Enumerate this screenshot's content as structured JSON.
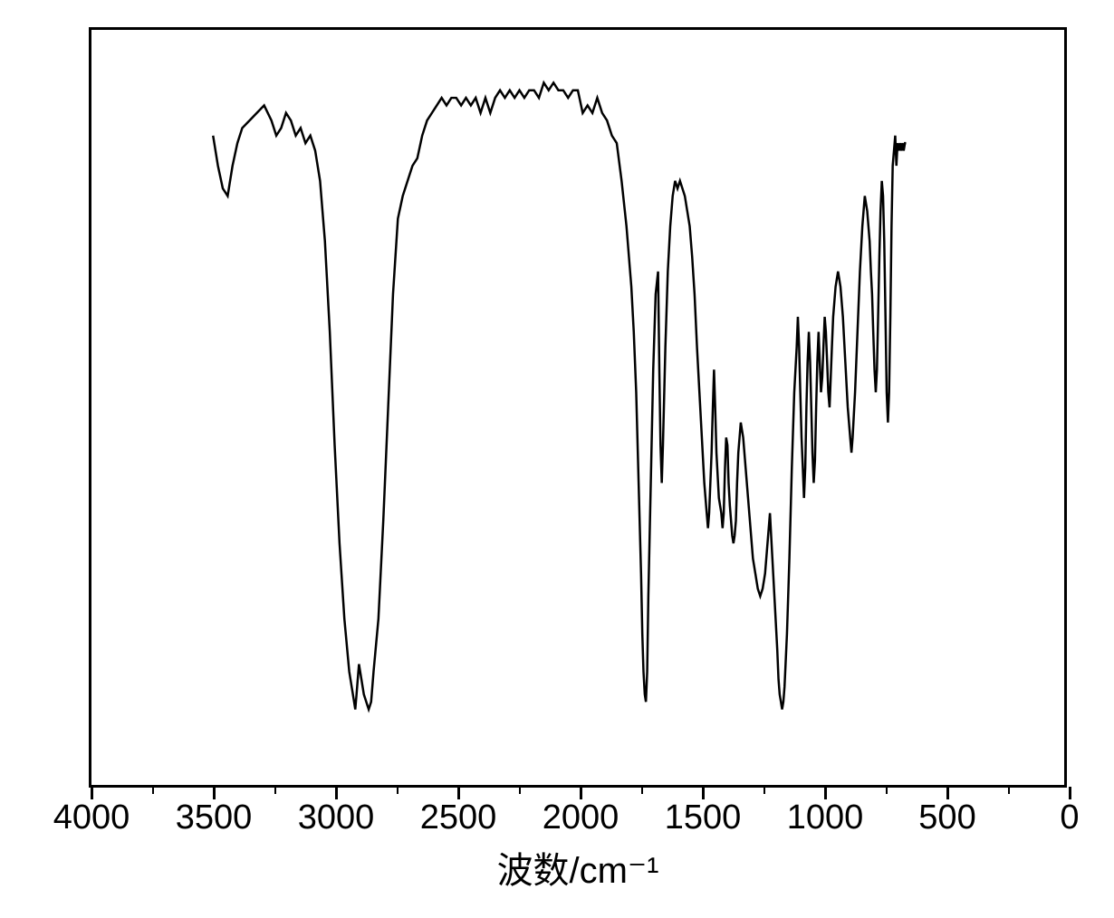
{
  "chart": {
    "type": "line",
    "title": "",
    "xlabel": "波数/cm⁻¹",
    "xlabel_fontsize": 40,
    "ylabel": "",
    "x_axis_reversed": true,
    "xlim": [
      0,
      4000
    ],
    "xtick_major": [
      4000,
      3500,
      3000,
      2500,
      2000,
      1500,
      1000,
      500,
      0
    ],
    "xtick_minor": [
      3750,
      3250,
      2750,
      2250,
      1750,
      1250,
      750,
      250
    ],
    "tick_label_fontsize": 38,
    "background_color": "#ffffff",
    "line_color": "#000000",
    "line_width": 2.5,
    "border_width": 3,
    "border_color": "#000000",
    "data_x_range": [
      3500,
      650
    ],
    "spectrum_points": [
      [
        3500,
        86
      ],
      [
        3480,
        82
      ],
      [
        3460,
        79
      ],
      [
        3440,
        78
      ],
      [
        3420,
        82
      ],
      [
        3400,
        85
      ],
      [
        3380,
        87
      ],
      [
        3350,
        88
      ],
      [
        3320,
        89
      ],
      [
        3290,
        90
      ],
      [
        3260,
        88
      ],
      [
        3240,
        86
      ],
      [
        3220,
        87
      ],
      [
        3200,
        89
      ],
      [
        3180,
        88
      ],
      [
        3160,
        86
      ],
      [
        3140,
        87
      ],
      [
        3120,
        85
      ],
      [
        3100,
        86
      ],
      [
        3080,
        84
      ],
      [
        3060,
        80
      ],
      [
        3040,
        72
      ],
      [
        3020,
        60
      ],
      [
        3000,
        45
      ],
      [
        2980,
        32
      ],
      [
        2960,
        22
      ],
      [
        2940,
        15
      ],
      [
        2920,
        11
      ],
      [
        2915,
        10
      ],
      [
        2910,
        12
      ],
      [
        2900,
        16
      ],
      [
        2890,
        14
      ],
      [
        2880,
        12
      ],
      [
        2870,
        11
      ],
      [
        2860,
        10
      ],
      [
        2850,
        11
      ],
      [
        2840,
        15
      ],
      [
        2820,
        22
      ],
      [
        2800,
        35
      ],
      [
        2780,
        50
      ],
      [
        2760,
        65
      ],
      [
        2740,
        75
      ],
      [
        2720,
        78
      ],
      [
        2700,
        80
      ],
      [
        2680,
        82
      ],
      [
        2660,
        83
      ],
      [
        2640,
        86
      ],
      [
        2620,
        88
      ],
      [
        2600,
        89
      ],
      [
        2580,
        90
      ],
      [
        2560,
        91
      ],
      [
        2540,
        90
      ],
      [
        2520,
        91
      ],
      [
        2500,
        91
      ],
      [
        2480,
        90
      ],
      [
        2460,
        91
      ],
      [
        2440,
        90
      ],
      [
        2420,
        91
      ],
      [
        2400,
        89
      ],
      [
        2380,
        91
      ],
      [
        2360,
        89
      ],
      [
        2340,
        91
      ],
      [
        2320,
        92
      ],
      [
        2300,
        91
      ],
      [
        2280,
        92
      ],
      [
        2260,
        91
      ],
      [
        2240,
        92
      ],
      [
        2220,
        91
      ],
      [
        2200,
        92
      ],
      [
        2180,
        92
      ],
      [
        2160,
        91
      ],
      [
        2140,
        93
      ],
      [
        2120,
        92
      ],
      [
        2100,
        93
      ],
      [
        2080,
        92
      ],
      [
        2060,
        92
      ],
      [
        2040,
        91
      ],
      [
        2020,
        92
      ],
      [
        2000,
        92
      ],
      [
        1980,
        89
      ],
      [
        1960,
        90
      ],
      [
        1940,
        89
      ],
      [
        1920,
        91
      ],
      [
        1900,
        89
      ],
      [
        1880,
        88
      ],
      [
        1860,
        86
      ],
      [
        1840,
        85
      ],
      [
        1820,
        80
      ],
      [
        1800,
        74
      ],
      [
        1780,
        66
      ],
      [
        1770,
        60
      ],
      [
        1760,
        52
      ],
      [
        1750,
        40
      ],
      [
        1740,
        28
      ],
      [
        1735,
        20
      ],
      [
        1730,
        15
      ],
      [
        1725,
        12
      ],
      [
        1720,
        11
      ],
      [
        1715,
        15
      ],
      [
        1710,
        25
      ],
      [
        1700,
        40
      ],
      [
        1690,
        55
      ],
      [
        1680,
        65
      ],
      [
        1670,
        68
      ],
      [
        1665,
        55
      ],
      [
        1660,
        45
      ],
      [
        1655,
        40
      ],
      [
        1650,
        45
      ],
      [
        1640,
        58
      ],
      [
        1630,
        68
      ],
      [
        1620,
        74
      ],
      [
        1610,
        78
      ],
      [
        1600,
        80
      ],
      [
        1590,
        79
      ],
      [
        1580,
        80
      ],
      [
        1570,
        79
      ],
      [
        1560,
        78
      ],
      [
        1550,
        76
      ],
      [
        1540,
        74
      ],
      [
        1530,
        70
      ],
      [
        1520,
        65
      ],
      [
        1510,
        58
      ],
      [
        1500,
        52
      ],
      [
        1490,
        46
      ],
      [
        1480,
        40
      ],
      [
        1470,
        36
      ],
      [
        1465,
        34
      ],
      [
        1460,
        36
      ],
      [
        1450,
        44
      ],
      [
        1445,
        50
      ],
      [
        1440,
        55
      ],
      [
        1435,
        50
      ],
      [
        1430,
        44
      ],
      [
        1420,
        38
      ],
      [
        1410,
        36
      ],
      [
        1405,
        34
      ],
      [
        1400,
        36
      ],
      [
        1395,
        42
      ],
      [
        1390,
        46
      ],
      [
        1385,
        45
      ],
      [
        1380,
        40
      ],
      [
        1375,
        37
      ],
      [
        1370,
        35
      ],
      [
        1365,
        33
      ],
      [
        1360,
        32
      ],
      [
        1355,
        33
      ],
      [
        1350,
        35
      ],
      [
        1345,
        40
      ],
      [
        1340,
        44
      ],
      [
        1330,
        48
      ],
      [
        1320,
        46
      ],
      [
        1310,
        42
      ],
      [
        1300,
        38
      ],
      [
        1290,
        34
      ],
      [
        1280,
        30
      ],
      [
        1270,
        28
      ],
      [
        1260,
        26
      ],
      [
        1250,
        25
      ],
      [
        1240,
        26
      ],
      [
        1230,
        28
      ],
      [
        1220,
        32
      ],
      [
        1210,
        36
      ],
      [
        1200,
        30
      ],
      [
        1190,
        24
      ],
      [
        1180,
        18
      ],
      [
        1175,
        14
      ],
      [
        1170,
        12
      ],
      [
        1165,
        11
      ],
      [
        1160,
        10
      ],
      [
        1155,
        11
      ],
      [
        1150,
        13
      ],
      [
        1140,
        20
      ],
      [
        1130,
        30
      ],
      [
        1120,
        42
      ],
      [
        1110,
        52
      ],
      [
        1100,
        58
      ],
      [
        1095,
        62
      ],
      [
        1090,
        58
      ],
      [
        1085,
        52
      ],
      [
        1080,
        46
      ],
      [
        1075,
        42
      ],
      [
        1070,
        38
      ],
      [
        1065,
        42
      ],
      [
        1060,
        50
      ],
      [
        1055,
        56
      ],
      [
        1050,
        60
      ],
      [
        1045,
        56
      ],
      [
        1040,
        50
      ],
      [
        1035,
        44
      ],
      [
        1030,
        40
      ],
      [
        1025,
        43
      ],
      [
        1020,
        50
      ],
      [
        1015,
        56
      ],
      [
        1010,
        60
      ],
      [
        1005,
        56
      ],
      [
        1000,
        52
      ],
      [
        995,
        54
      ],
      [
        990,
        58
      ],
      [
        985,
        62
      ],
      [
        980,
        60
      ],
      [
        975,
        56
      ],
      [
        970,
        52
      ],
      [
        965,
        50
      ],
      [
        960,
        54
      ],
      [
        955,
        58
      ],
      [
        950,
        62
      ],
      [
        940,
        66
      ],
      [
        930,
        68
      ],
      [
        920,
        66
      ],
      [
        910,
        62
      ],
      [
        900,
        56
      ],
      [
        890,
        50
      ],
      [
        880,
        46
      ],
      [
        875,
        44
      ],
      [
        870,
        46
      ],
      [
        860,
        52
      ],
      [
        850,
        60
      ],
      [
        840,
        68
      ],
      [
        830,
        74
      ],
      [
        820,
        78
      ],
      [
        810,
        76
      ],
      [
        800,
        72
      ],
      [
        795,
        68
      ],
      [
        790,
        65
      ],
      [
        785,
        60
      ],
      [
        780,
        55
      ],
      [
        775,
        52
      ],
      [
        770,
        55
      ],
      [
        765,
        62
      ],
      [
        760,
        70
      ],
      [
        755,
        76
      ],
      [
        750,
        80
      ],
      [
        745,
        78
      ],
      [
        740,
        72
      ],
      [
        735,
        62
      ],
      [
        730,
        52
      ],
      [
        725,
        48
      ],
      [
        720,
        52
      ],
      [
        715,
        62
      ],
      [
        710,
        74
      ],
      [
        705,
        82
      ],
      [
        700,
        84
      ],
      [
        695,
        86
      ],
      [
        690,
        82
      ],
      [
        685,
        85
      ],
      [
        680,
        84
      ],
      [
        675,
        85
      ],
      [
        670,
        84
      ],
      [
        665,
        85
      ],
      [
        660,
        84
      ],
      [
        655,
        85
      ],
      [
        650,
        85
      ]
    ]
  }
}
